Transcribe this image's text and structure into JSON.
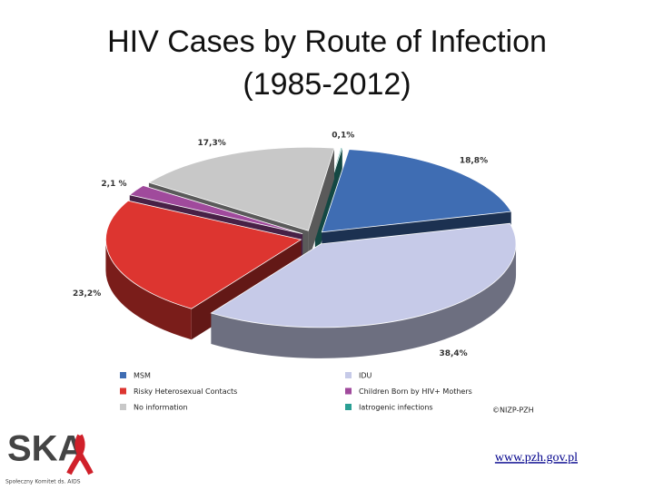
{
  "chart_data": {
    "type": "pie3d",
    "title": [
      "HIV Cases by Route of Infection",
      "(1985-2012)"
    ],
    "categories": [
      "MSM",
      "IDU",
      "Risky Heterosexual Contacts",
      "Children Born by HIV+ Mothers",
      "No information",
      "Iatrogenic infections"
    ],
    "values": [
      18.8,
      38.4,
      23.2,
      2.1,
      17.3,
      0.1
    ],
    "value_labels": [
      "18,8%",
      "38,4%",
      "23,2%",
      "2,1 %",
      "17,3%",
      "0,1%"
    ],
    "colors": [
      "#3f6db3",
      "#c6cae8",
      "#dd3530",
      "#a04a9c",
      "#c8c8c8",
      "#2a9f94"
    ],
    "source": "©NIZP-PZH"
  },
  "footer": {
    "link": "www.pzh.gov.pl",
    "logo": "SKA",
    "logo_caption": "Społeczny Komitet ds. AIDS"
  }
}
